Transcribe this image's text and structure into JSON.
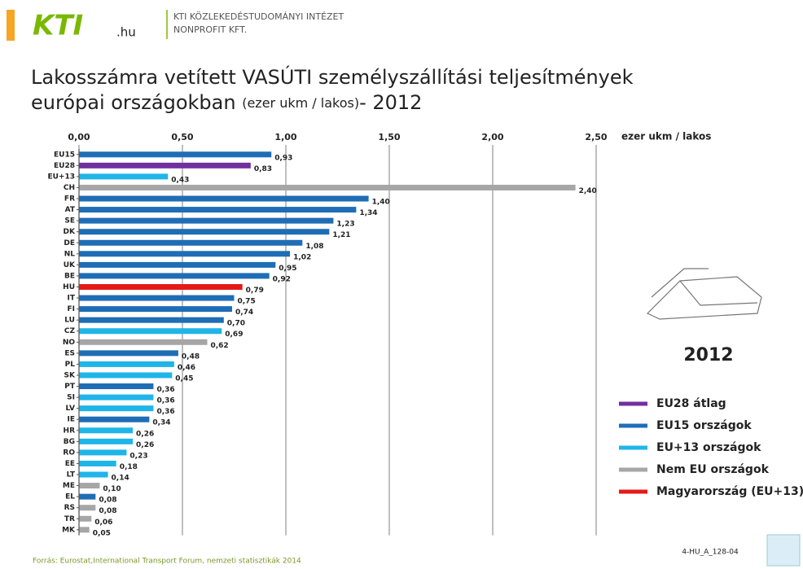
{
  "header": {
    "logo": "KTI",
    "logo_suffix": ".hu",
    "org_line1": "KTI KÖZLEKEDÉSTUDOMÁNYI INTÉZET",
    "org_line2": "NONPROFIT KFT."
  },
  "chart_data": {
    "type": "bar",
    "orientation": "horizontal",
    "title": "Lakosszámra vetített VASÚTI személyszállítási teljesítmények",
    "title_line2": "európai országokban",
    "title_unit": "(ezer ukm / lakos)",
    "title_year": "- 2012",
    "axis_label": "ezer ukm / lakos",
    "categories": [
      "EU15",
      "EU28",
      "EU+13",
      "CH",
      "FR",
      "AT",
      "SE",
      "DK",
      "DE",
      "NL",
      "UK",
      "BE",
      "HU",
      "IT",
      "FI",
      "LU",
      "CZ",
      "NO",
      "ES",
      "PL",
      "SK",
      "PT",
      "SI",
      "LV",
      "IE",
      "HR",
      "BG",
      "RO",
      "EE",
      "LT",
      "ME",
      "EL",
      "RS",
      "TR",
      "MK"
    ],
    "values": [
      0.93,
      0.83,
      0.43,
      2.4,
      1.4,
      1.34,
      1.23,
      1.21,
      1.08,
      1.02,
      0.95,
      0.92,
      0.79,
      0.75,
      0.74,
      0.7,
      0.69,
      0.62,
      0.48,
      0.46,
      0.45,
      0.36,
      0.36,
      0.36,
      0.34,
      0.26,
      0.26,
      0.23,
      0.18,
      0.14,
      0.1,
      0.08,
      0.08,
      0.06,
      0.05
    ],
    "value_labels": [
      "0,93",
      "0,83",
      "0,43",
      "2,40",
      "1,40",
      "1,34",
      "1,23",
      "1,21",
      "1,08",
      "1,02",
      "0,95",
      "0,92",
      "0,79",
      "0,75",
      "0,74",
      "0,70",
      "0,69",
      "0,62",
      "0,48",
      "0,46",
      "0,45",
      "0,36",
      "0,36",
      "0,36",
      "0,34",
      "0,26",
      "0,26",
      "0,23",
      "0,18",
      "0,14",
      "0,10",
      "0,08",
      "0,08",
      "0,06",
      "0,05"
    ],
    "colors": [
      "#1f6db5",
      "#7030a0",
      "#1fb5e8",
      "#a6a6a6",
      "#1f6db5",
      "#1f6db5",
      "#1f6db5",
      "#1f6db5",
      "#1f6db5",
      "#1f6db5",
      "#1f6db5",
      "#1f6db5",
      "#e41b1b",
      "#1f6db5",
      "#1f6db5",
      "#1f6db5",
      "#1fb5e8",
      "#a6a6a6",
      "#1f6db5",
      "#1fb5e8",
      "#1fb5e8",
      "#1f6db5",
      "#1fb5e8",
      "#1fb5e8",
      "#1f6db5",
      "#1fb5e8",
      "#1fb5e8",
      "#1fb5e8",
      "#1fb5e8",
      "#1fb5e8",
      "#a6a6a6",
      "#1f6db5",
      "#a6a6a6",
      "#a6a6a6",
      "#a6a6a6"
    ],
    "xlim": [
      0,
      2.5
    ],
    "xticks": [
      {
        "value": 0,
        "label": "0,00"
      },
      {
        "value": 0.5,
        "label": "0,50"
      },
      {
        "value": 1,
        "label": "1,00"
      },
      {
        "value": 1.5,
        "label": "1,50"
      },
      {
        "value": 2,
        "label": "2,00"
      },
      {
        "value": 2.5,
        "label": "2,50"
      }
    ],
    "grid": true,
    "side_year": "2012",
    "legend": [
      {
        "name": "EU28 átlag",
        "color": "#7030a0"
      },
      {
        "name": "EU15 országok",
        "color": "#1f6db5"
      },
      {
        "name": "EU+13 országok",
        "color": "#1fb5e8"
      },
      {
        "name": "Nem EU országok",
        "color": "#a6a6a6"
      },
      {
        "name": "Magyarország (EU+13)",
        "color": "#e41b1b"
      }
    ],
    "source": "Forrás: Eurostat,International Transport Forum, nemzeti statisztikák 2014",
    "code": "4-HU_A_128-04"
  }
}
